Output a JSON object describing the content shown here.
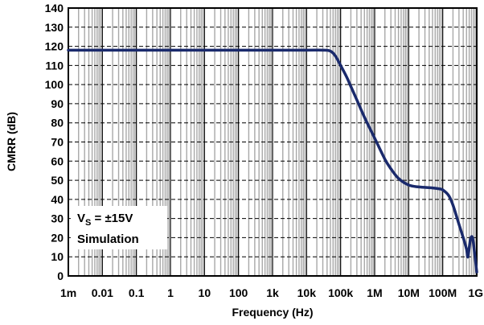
{
  "chart_data": {
    "type": "line",
    "title": "",
    "xlabel": "Frequency (Hz)",
    "ylabel": "CMRR (dB)",
    "x_scale": "log",
    "xlim": [
      0.001,
      1000000000
    ],
    "ylim": [
      0,
      140
    ],
    "x_ticks": [
      0.001,
      0.01,
      0.1,
      1,
      10,
      100,
      1000,
      10000,
      100000,
      1000000,
      10000000,
      100000000,
      1000000000
    ],
    "x_tick_labels": [
      "1m",
      "0.01",
      "0.1",
      "1",
      "10",
      "100",
      "1k",
      "10k",
      "100k",
      "1M",
      "10M",
      "100M",
      "1G"
    ],
    "y_ticks": [
      0,
      10,
      20,
      30,
      40,
      50,
      60,
      70,
      80,
      90,
      100,
      110,
      120,
      130,
      140
    ],
    "y_tick_labels": [
      "0",
      "10",
      "20",
      "30",
      "40",
      "50",
      "60",
      "70",
      "80",
      "90",
      "100",
      "110",
      "120",
      "130",
      "140"
    ],
    "grid": true,
    "line_color": "#1a2a6c",
    "series": [
      {
        "x": [
          0.001,
          0.01,
          0.1,
          1,
          10,
          100,
          1000,
          10000,
          30000,
          50000,
          70000,
          100000,
          150000,
          200000,
          300000,
          500000,
          1000000,
          2000000,
          3000000,
          5000000,
          10000000,
          20000000,
          50000000,
          80000000,
          100000000,
          150000000,
          200000000,
          300000000,
          400000000,
          500000000,
          550000000,
          650000000,
          750000000,
          850000000,
          1000000000
        ],
        "y": [
          118,
          118,
          118,
          118,
          118,
          118,
          118,
          118,
          118,
          117.5,
          115,
          110,
          104,
          99,
          92,
          83,
          72,
          61,
          56,
          51,
          47.5,
          46.5,
          46,
          45.5,
          45,
          42,
          37,
          27,
          20,
          14,
          10,
          19,
          20,
          13,
          2
        ]
      }
    ],
    "annotation": {
      "line1_main": "V",
      "line1_sub": "S",
      "line1_rest": " = ±15V",
      "line2": "Simulation"
    }
  }
}
